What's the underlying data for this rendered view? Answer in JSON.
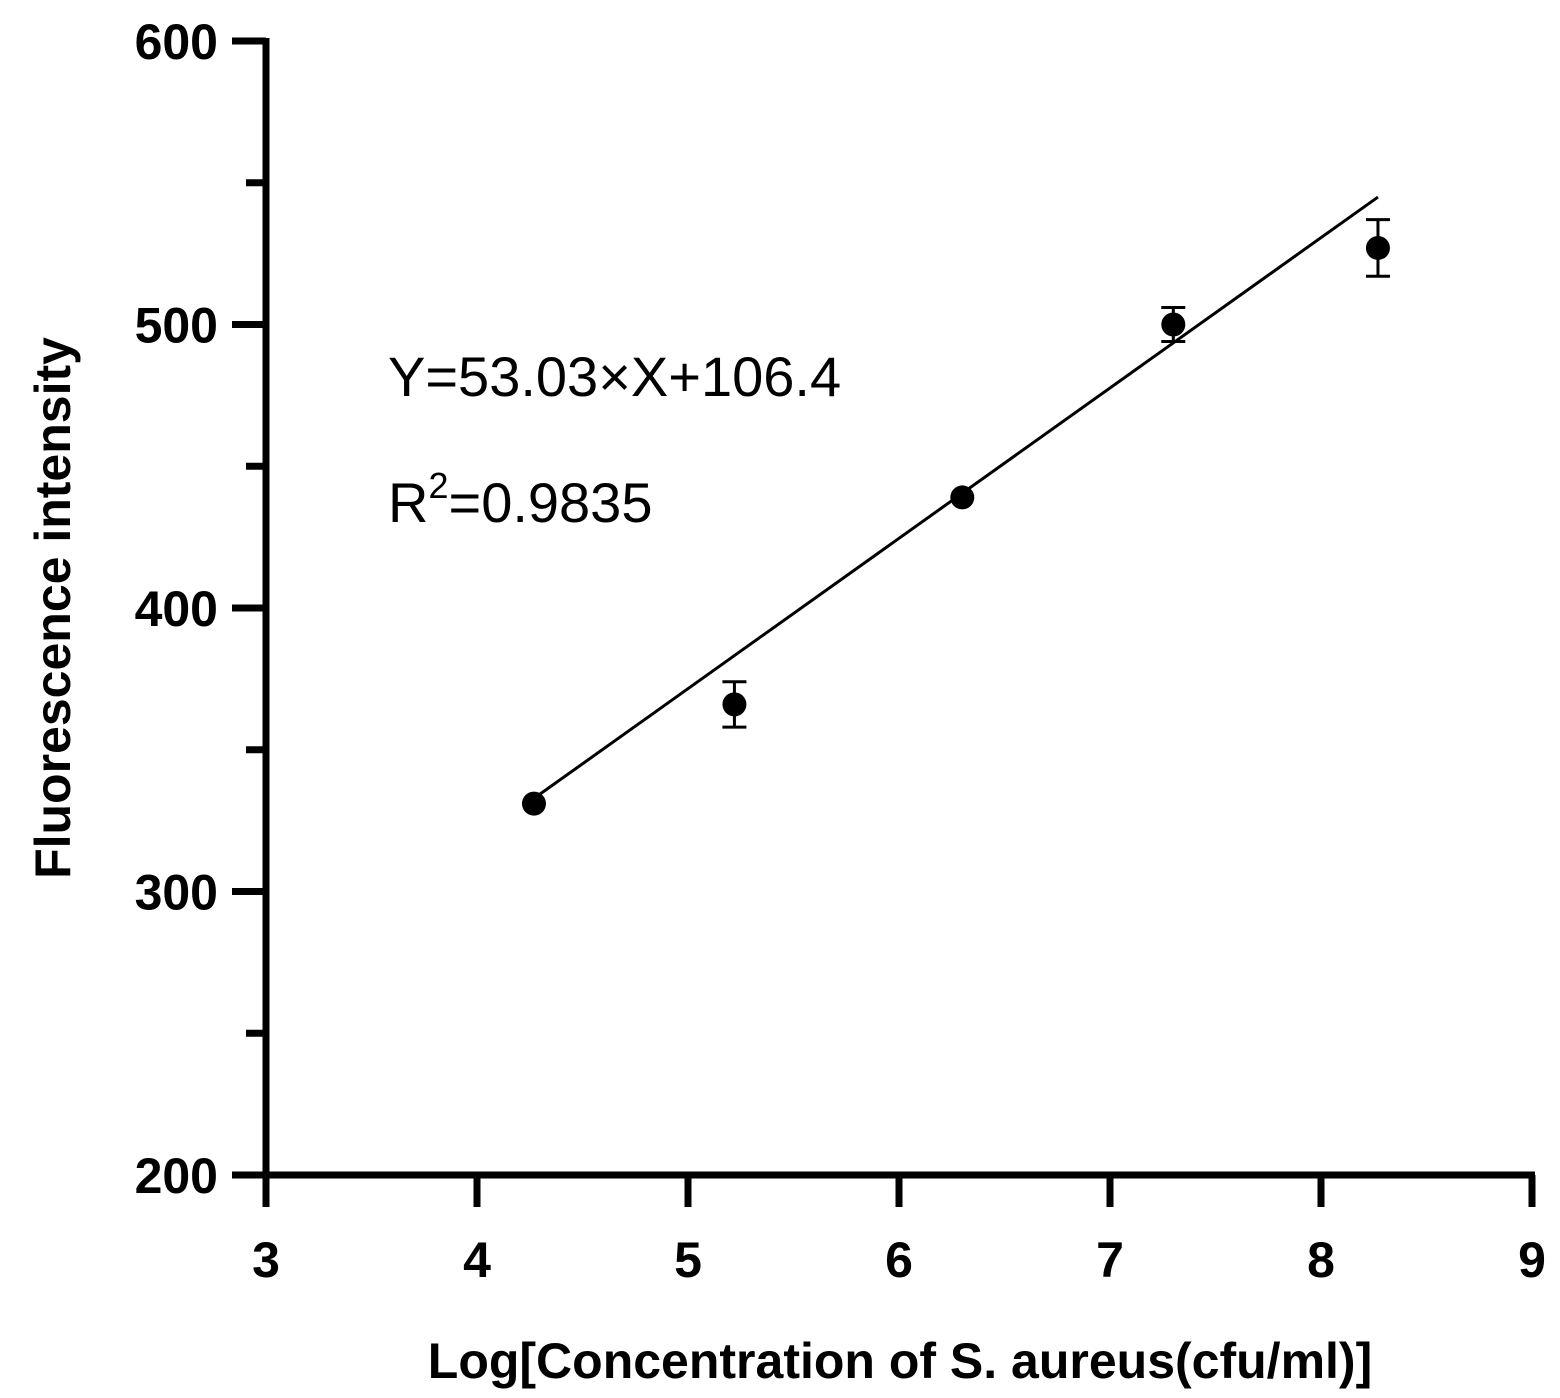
{
  "chart_data": {
    "type": "scatter",
    "title": "",
    "xlabel": "Log[Concentration of S. aureus(cfu/ml)]",
    "ylabel": "Fluorescence intensity",
    "xlim": [
      3,
      9
    ],
    "ylim": [
      200,
      600
    ],
    "x_ticks": [
      "3",
      "4",
      "5",
      "6",
      "7",
      "8",
      "9"
    ],
    "y_ticks": [
      "200",
      "300",
      "400",
      "500",
      "600"
    ],
    "y_minor_ticks": [
      250,
      350,
      450,
      550
    ],
    "grid": false,
    "points": [
      {
        "x": 4.27,
        "y": 331,
        "err": 0
      },
      {
        "x": 5.22,
        "y": 366,
        "err": 8
      },
      {
        "x": 6.3,
        "y": 439,
        "err": 0
      },
      {
        "x": 7.3,
        "y": 500,
        "err": 6
      },
      {
        "x": 8.27,
        "y": 527,
        "err": 10
      }
    ],
    "fit": {
      "slope": 53.03,
      "intercept": 106.4,
      "x_start": 4.27,
      "x_end": 8.27
    },
    "annotations": {
      "equation": "Y=53.03×X+106.4",
      "r2_prefix": "R",
      "r2_sup": "2",
      "r2_value": "=0.9835"
    }
  }
}
